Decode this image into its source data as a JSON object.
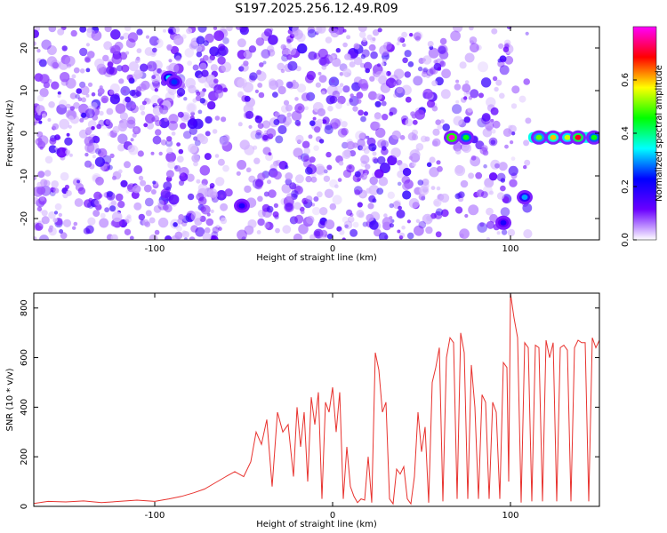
{
  "figure": {
    "title": "S197.2025.256.12.49.R09"
  },
  "chart_data": [
    {
      "type": "heatmap",
      "title": "",
      "xlabel": "Height of straight line (km)",
      "ylabel": "Frequency (Hz)",
      "xlim": [
        -168,
        150
      ],
      "ylim": [
        -25,
        25
      ],
      "xticks": [
        -100,
        0,
        100
      ],
      "yticks": [
        -20,
        -10,
        0,
        10,
        20
      ],
      "colorbar": {
        "label": "Normalized spectral amplitude",
        "range": [
          0.0,
          0.8
        ],
        "ticks": [
          0.0,
          0.2,
          0.4,
          0.6
        ],
        "tick_labels": [
          "0.0",
          "0.2",
          "0.4",
          "0.6"
        ],
        "colors": [
          "#ffffff",
          "#6a00ff",
          "#0000ff",
          "#00ffff",
          "#00ff00",
          "#ffff00",
          "#ff0000",
          "#ff00ff"
        ]
      },
      "noise_bands": [
        {
          "x": [
            -168,
            -58
          ],
          "density": 0.85
        },
        {
          "x": [
            -53,
            64
          ],
          "density": 0.75
        },
        {
          "x": [
            69,
            103
          ],
          "density": 0.55
        },
        {
          "x": [
            106,
            110
          ],
          "density": 0.4
        }
      ],
      "gaps": [
        [
          -58,
          -53
        ],
        [
          64,
          69
        ],
        [
          103,
          106
        ],
        [
          110,
          150
        ]
      ],
      "features": [
        {
          "x": -92,
          "y": 13,
          "value": 0.35
        },
        {
          "x": -89,
          "y": 12,
          "value": 0.25
        },
        {
          "x": -51,
          "y": -17,
          "value": 0.2
        },
        {
          "x": 67,
          "y": -1,
          "value": 0.78
        },
        {
          "x": 75,
          "y": -1,
          "value": 0.45
        },
        {
          "x": 96,
          "y": -21,
          "value": 0.2
        },
        {
          "x": 108,
          "y": -15,
          "value": 0.3
        },
        {
          "x": 116,
          "y": -1,
          "value": 0.5
        },
        {
          "x": 124,
          "y": -1,
          "value": 0.6
        },
        {
          "x": 132,
          "y": -1,
          "value": 0.55
        },
        {
          "x": 138,
          "y": -1,
          "value": 0.7
        },
        {
          "x": 147,
          "y": -1,
          "value": 0.45
        }
      ],
      "line_feature": {
        "x": [
          110,
          150
        ],
        "y": -1
      }
    },
    {
      "type": "line",
      "title": "",
      "xlabel": "Height of straight line (km)",
      "ylabel": "SNR (10 * v/v)",
      "xlim": [
        -168,
        150
      ],
      "ylim": [
        0,
        860
      ],
      "xticks": [
        -100,
        0,
        100
      ],
      "yticks": [
        0,
        200,
        400,
        600,
        800
      ],
      "series": [
        {
          "color": "#e8322e",
          "x": [
            -168,
            -160,
            -150,
            -140,
            -130,
            -120,
            -110,
            -100,
            -92,
            -85,
            -78,
            -72,
            -66,
            -60,
            -55,
            -50,
            -46,
            -43,
            -40,
            -37,
            -34,
            -31,
            -28,
            -25,
            -22,
            -20,
            -18,
            -16,
            -14,
            -12,
            -10,
            -8,
            -6,
            -4,
            -2,
            0,
            2,
            4,
            6,
            8,
            10,
            12,
            14,
            16,
            18,
            20,
            22,
            24,
            26,
            28,
            30,
            32,
            34,
            36,
            38,
            40,
            42,
            44,
            46,
            48,
            50,
            52,
            54,
            56,
            58,
            60,
            62,
            64,
            66,
            68,
            70,
            72,
            74,
            76,
            78,
            80,
            82,
            84,
            86,
            88,
            90,
            92,
            94,
            96,
            98,
            99,
            100,
            102,
            104,
            106,
            108,
            110,
            112,
            114,
            116,
            118,
            120,
            122,
            124,
            126,
            128,
            130,
            132,
            134,
            136,
            138,
            140,
            142,
            144,
            146,
            148,
            150
          ],
          "y": [
            12,
            20,
            18,
            22,
            15,
            20,
            25,
            20,
            30,
            40,
            55,
            70,
            95,
            120,
            140,
            120,
            180,
            300,
            250,
            350,
            80,
            380,
            300,
            330,
            120,
            400,
            240,
            380,
            100,
            440,
            330,
            460,
            30,
            420,
            380,
            480,
            300,
            460,
            30,
            240,
            80,
            40,
            15,
            30,
            25,
            200,
            15,
            620,
            550,
            380,
            420,
            30,
            10,
            150,
            130,
            160,
            30,
            10,
            120,
            380,
            220,
            320,
            15,
            500,
            560,
            640,
            20,
            600,
            680,
            660,
            30,
            700,
            620,
            30,
            570,
            400,
            30,
            450,
            420,
            30,
            420,
            380,
            30,
            580,
            560,
            100,
            860,
            760,
            680,
            15,
            660,
            640,
            20,
            650,
            640,
            20,
            670,
            600,
            660,
            20,
            640,
            650,
            630,
            20,
            640,
            670,
            660,
            660,
            20,
            680,
            640,
            670
          ]
        }
      ]
    }
  ]
}
